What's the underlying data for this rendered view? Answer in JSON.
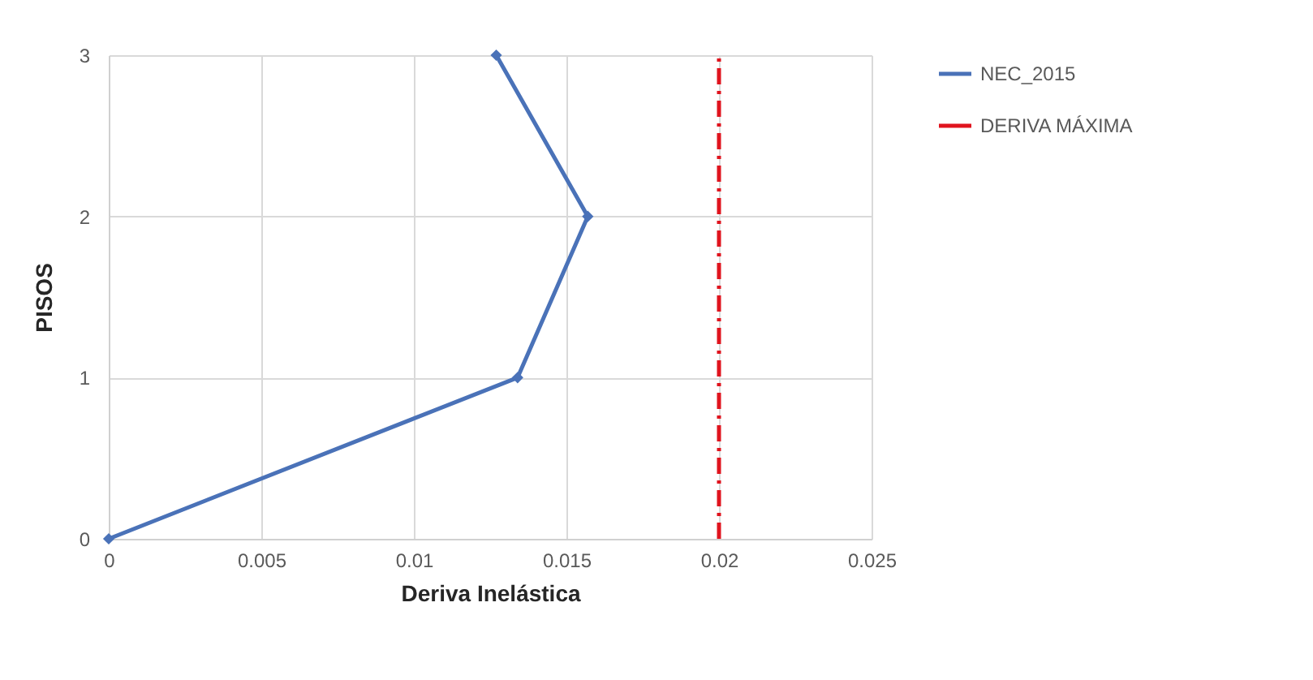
{
  "chart_data": {
    "type": "line",
    "xlabel": "Deriva Inelástica",
    "ylabel": "PISOS",
    "xlim": [
      0,
      0.025
    ],
    "xticks": [
      0,
      0.005,
      0.01,
      0.015,
      0.02,
      0.025
    ],
    "ylim": [
      0,
      3
    ],
    "yticks": [
      0,
      1,
      2,
      3
    ],
    "grid": true,
    "legend": "right",
    "series": [
      {
        "name": "NEC_2015",
        "color": "#4a72b8",
        "x": [
          0,
          0.0134,
          0.0157,
          0.0127
        ],
        "values": [
          0,
          1,
          2,
          3
        ],
        "marker": "diamond",
        "line_style": "solid"
      },
      {
        "name": "DERIVA MÁXIMA",
        "color": "#e0141e",
        "x": [
          0.02,
          0.02
        ],
        "values": [
          0,
          3
        ],
        "marker": "none",
        "line_style": "dashed"
      }
    ]
  }
}
